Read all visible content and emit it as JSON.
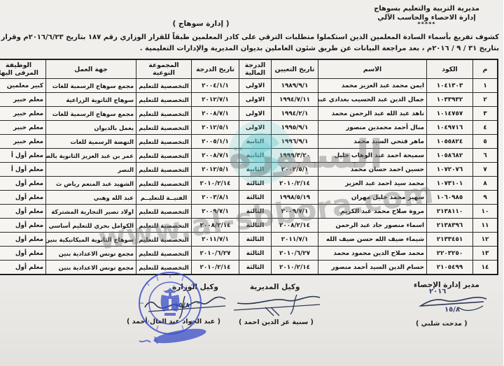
{
  "header": {
    "org_line1": "مديرية التربية والتعليم بسوهاج",
    "org_line2": "إدارة الاحصاء والحاسب الآلي",
    "org_stars": "*****",
    "department": "( إدارة  سوهاج )",
    "title_line1": "كشوف تفريغ بأسماء السادة المعلمين الذين استكملوا متطلبات الترقي على كادر المعلمين طبقاً للقرار الوزاري رقم ١٨٧ بتاريخ ٢٠١٦/٦/٢٣م وقرار المحافظ رقم (٨٣٢)",
    "title_line2": "بتاريخ ٣١ / ٩ / ٢٠١٦م ، بعد مراجعة البيانات عن طريق شئون العاملين بديوان المديرية والإدارات التعليمية ."
  },
  "table": {
    "columns": [
      {
        "key": "num",
        "label": "م"
      },
      {
        "key": "code",
        "label": "الكود"
      },
      {
        "key": "name",
        "label": "الاسم"
      },
      {
        "key": "hire_date",
        "label": "تاريخ التعيين"
      },
      {
        "key": "fin_grade",
        "label": "الدرجة المالية"
      },
      {
        "key": "grade_date",
        "label": "تاريخ الدرجة"
      },
      {
        "key": "group",
        "label": "المجموعة النوعية"
      },
      {
        "key": "workplace",
        "label": "جهة العمل"
      },
      {
        "key": "promoted",
        "label": "الوظيفة المرقى اليها"
      }
    ],
    "rows": [
      {
        "num": "١",
        "code": "١٠٤١٣٠٣",
        "name": "ايمن محمد عبد العزيز محمد",
        "hire_date": "١٩٨٩/٩/١",
        "fin_grade": "الاولى",
        "grade_date": "٢٠٠٤/١/١",
        "group": "التخصصية للتعليم",
        "workplace": "مجمع سوهاج الرسمية للغات",
        "promoted": "كبير معلمين"
      },
      {
        "num": "٢",
        "code": "١٠٣٣٩٣٢",
        "name": "جمال الدين عبد الحسيب بغدادي عبداللطيف",
        "hire_date": "١٩٩٤/٧/١١",
        "fin_grade": "الاولى",
        "grade_date": "٢٠١٢/٧/١",
        "group": "التخصصية للتعليم",
        "workplace": "سوهاج الثانوية الزراعية",
        "promoted": "معلم خبير"
      },
      {
        "num": "٣",
        "code": "١٠١٤٧٥٧",
        "name": "ناهد عبد الله عبد الرحمن محمد",
        "hire_date": "١٩٩٤/٢/١",
        "fin_grade": "الاولى",
        "grade_date": "٢٠٠٨/٧/١",
        "group": "التخصصية للتعليم",
        "workplace": "مجمع سوهاج الرسمية للغات",
        "promoted": "معلم خبير"
      },
      {
        "num": "٤",
        "code": "١٠٤٩٧١٦",
        "name": "منال أحمد محمدين منصور",
        "hire_date": "١٩٩٥/٩/١",
        "fin_grade": "الاولى",
        "grade_date": "٢٠١٢/٥/١",
        "group": "التخصصية للتعليم",
        "workplace": "يعمل بالديوان",
        "promoted": "معلم خبير"
      },
      {
        "num": "٥",
        "code": "١٠٥٥٨٢٤",
        "name": "ماهر فتحي السيد محمد",
        "hire_date": "١٩٩٦/٩/١",
        "fin_grade": "الثانية",
        "grade_date": "٢٠٠٥/١/١",
        "group": "التخصصية للتعليم",
        "workplace": "النهضة الرسمية للغات",
        "promoted": "معلم خبير"
      },
      {
        "num": "٦",
        "code": "١٠٥٨٦٨٢",
        "name": "سميحة احمد عبد الوهاب خليل",
        "hire_date": "١٩٩٩/٣/٢٠",
        "fin_grade": "الثانية",
        "grade_date": "٢٠٠٨/٧/١",
        "group": "التخصصية للتعليم",
        "workplace": "عمر بن عبد العزيز الثانوية بالصلعا",
        "promoted": "معلم أول أ"
      },
      {
        "num": "٧",
        "code": "١٠٧٢٠٧٦",
        "name": "حسين احمد حسان محمد",
        "hire_date": "٢٠٠٢/٥/١",
        "fin_grade": "الثانية",
        "grade_date": "٢٠١٢/٥/١",
        "group": "التخصصية للتعليم",
        "workplace": "النصر",
        "promoted": "معلم أول أ"
      },
      {
        "num": "٨",
        "code": "١٠٧٣١٠١",
        "name": "محمد سيد احمد عبد العزيز",
        "hire_date": "٢٠١٠/٢/١٤",
        "fin_grade": "الثالثة",
        "grade_date": "٢٠١٠/٢/١٤",
        "group": "التخصصية للتعليم",
        "workplace": "الشهيد عبد المنعم رياض ث",
        "promoted": "معلم أول"
      },
      {
        "num": "٩",
        "code": "١٠٦٠٩٨٥",
        "name": "سهير محمد خليل مهران",
        "hire_date": "١٩٩٨/٥/١٩",
        "fin_grade": "الثالثة",
        "grade_date": "٢٠٠٣/٨/١",
        "group": "الفنيــة للتعليــم",
        "workplace": "عبد الله وهبي",
        "promoted": "معلم أول"
      },
      {
        "num": "١٠",
        "code": "٢١٣٨١١٠",
        "name": "مروة صلاح محمد عبد الكريم",
        "hire_date": "٢٠٠٩/٧/١",
        "fin_grade": "الثالثة",
        "grade_date": "٢٠٠٩/٧/١",
        "group": "التخصصية للتعليم",
        "workplace": "اولاد نصير التجارية المشتركة",
        "promoted": "معلم أول"
      },
      {
        "num": "١١",
        "code": "٢١٣٨٣٩٦",
        "name": "اسماء منصور جاد عبد الرحمن",
        "hire_date": "٢٠٠٨/٢/١٤",
        "fin_grade": "الثالثة",
        "grade_date": "٢٠٠٨/٢/١٤",
        "group": "التخصصية للتعليم",
        "workplace": "الكوامل بحري للتعليم أساسي",
        "promoted": "معلم أول"
      },
      {
        "num": "١٢",
        "code": "٢١٣٣٤٥١",
        "name": "شيماء ضيف الله حسن ضيف الله",
        "hire_date": "٢٠١١/٧/١",
        "fin_grade": "الثالثة",
        "grade_date": "٢٠١١/٧/١",
        "group": "التخصصية للتعليم",
        "workplace": "سوهاج الثانوية الميكانيكية بنين",
        "promoted": "معلم أول"
      },
      {
        "num": "١٣",
        "code": "٢٢٠٣٢٥٠",
        "name": "محمد صلاح الدين محمود محمد",
        "hire_date": "٢٠١٠/٦/٢٧",
        "fin_grade": "الثالثة",
        "grade_date": "٢٠١٠/٦/٢٧",
        "group": "التخصصية للتعليم",
        "workplace": "مجمع تونس الاعدادية بنين",
        "promoted": "معلم أول"
      },
      {
        "num": "١٤",
        "code": "٢١٠٥٤٩٩",
        "name": "حسام الدين السيد أحمد منصور",
        "hire_date": "٢٠١٠/٢/١٤",
        "fin_grade": "الثالثة",
        "grade_date": "٢٠١٠/٢/١٤",
        "group": "التخصصية للتعليم",
        "workplace": "مجمع تونس الاعدادية بنين",
        "promoted": "معلم أول"
      }
    ]
  },
  "signatures": {
    "ministry_deputy": {
      "title": "وكيل الوزارة",
      "name": "( عبد الجواد عبد العال أحمد )",
      "hand_date": "١٥/٨"
    },
    "directorate_deputy": {
      "title": "وكيل المديرية",
      "name": "( سنية عز الدين احمد )"
    },
    "stats_manager": {
      "title": "مدير إدارة الإحصاء",
      "name": "( مدحت شلبي )",
      "hand_year": "٢٠١٦",
      "hand_date": "١٥/٨"
    }
  },
  "watermark": {
    "site": "www.al-sbbora.com",
    "arabic": "السبورة",
    "logo_color": "#5bc8d0",
    "text_color": "#7d7d7d"
  },
  "stamp": {
    "color": "#3c50c8"
  }
}
